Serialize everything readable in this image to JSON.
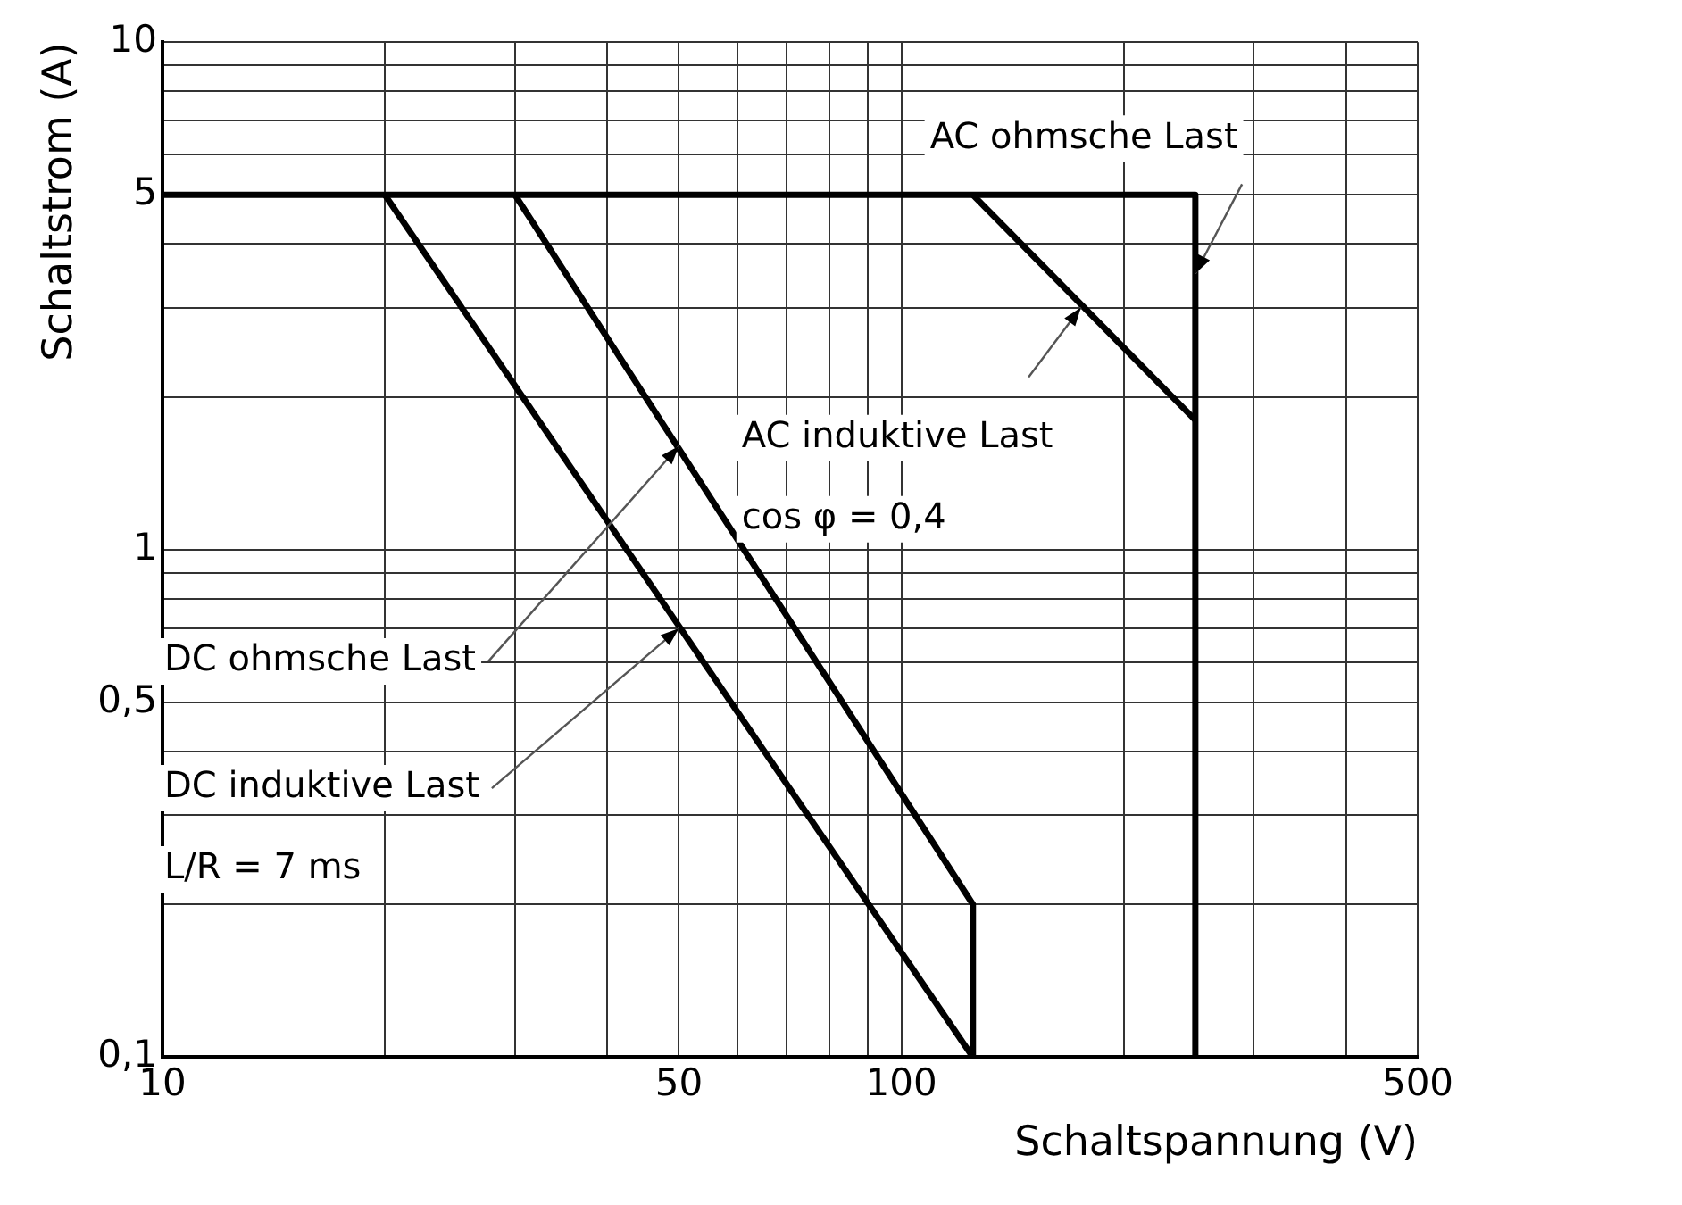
{
  "chart_data": {
    "type": "line",
    "xlabel": "Schaltspannung (V)",
    "ylabel": "Schaltstrom (A)",
    "log": "xy",
    "grid": true,
    "legend": false,
    "marker": "none",
    "line_style": "solid",
    "xlim": [
      10,
      500
    ],
    "ylim": [
      0.1,
      10
    ],
    "xticks": [
      10,
      {
        "value": 20,
        "label": null
      },
      {
        "value": 30,
        "label": null
      },
      {
        "value": 40,
        "label": null
      },
      50,
      {
        "value": 60,
        "label": null
      },
      {
        "value": 70,
        "label": null
      },
      {
        "value": 80,
        "label": null
      },
      {
        "value": 90,
        "label": null
      },
      100,
      {
        "value": 200,
        "label": null
      },
      {
        "value": 300,
        "label": null
      },
      {
        "value": 400,
        "label": null
      },
      500
    ],
    "yticks": [
      {
        "value": 0.1,
        "label": "0,1"
      },
      {
        "value": 0.2,
        "label": null
      },
      {
        "value": 0.3,
        "label": null
      },
      {
        "value": 0.4,
        "label": null
      },
      {
        "value": 0.5,
        "label": "0,5"
      },
      {
        "value": 0.6,
        "label": null
      },
      {
        "value": 0.7,
        "label": null
      },
      {
        "value": 0.8,
        "label": null
      },
      {
        "value": 0.9,
        "label": null
      },
      1,
      {
        "value": 2,
        "label": null
      },
      {
        "value": 3,
        "label": null
      },
      {
        "value": 4,
        "label": null
      },
      5,
      {
        "value": 6,
        "label": null
      },
      {
        "value": 7,
        "label": null
      },
      {
        "value": 8,
        "label": null
      },
      {
        "value": 9,
        "label": null
      },
      10
    ],
    "series": [
      {
        "color": "#000000",
        "x": [
          10,
          250,
          250
        ],
        "values": [
          5,
          5,
          0.1
        ]
      },
      {
        "color": "#000000",
        "x": [
          125,
          250
        ],
        "values": [
          5,
          1.8
        ]
      },
      {
        "color": "#000000",
        "x": [
          30,
          125,
          125
        ],
        "values": [
          5,
          0.2,
          0.1
        ]
      },
      {
        "color": "#000000",
        "x": [
          20,
          125
        ],
        "values": [
          5,
          0.1
        ]
      }
    ],
    "annotations": [
      {
        "text": "AC ohmsche Last",
        "x": 250,
        "y": 3.5
      },
      {
        "text": "AC induktive Last",
        "x": 175,
        "y": 3
      },
      "cos φ = 0,4",
      {
        "text": "DC ohmsche Last",
        "x": 50,
        "y": 1.6
      },
      {
        "text": "DC induktive Last",
        "x": 50,
        "y": 0.7
      },
      "L/R = 7 ms"
    ]
  }
}
